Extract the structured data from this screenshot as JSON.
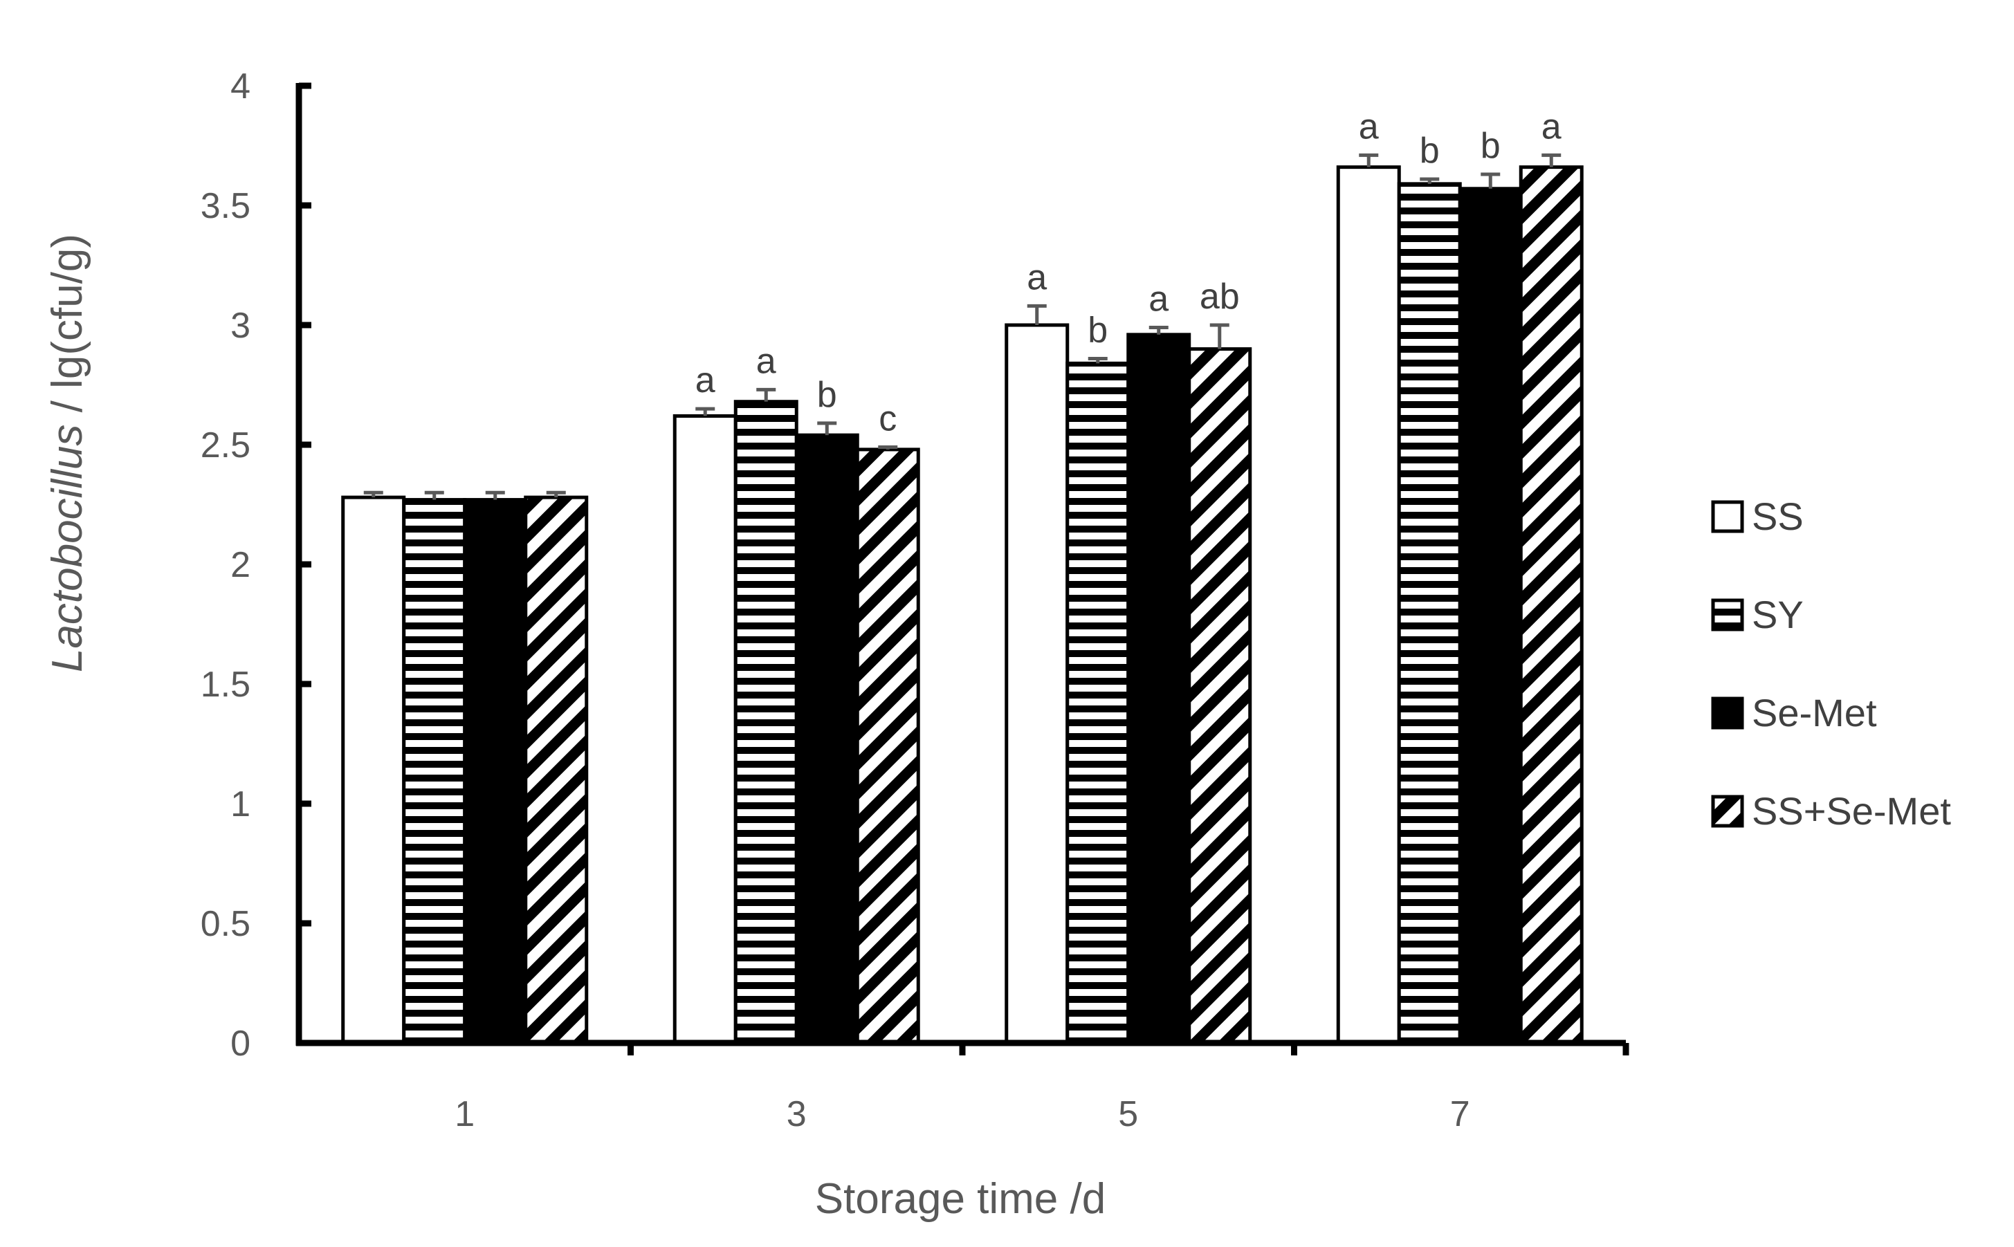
{
  "chart_data": {
    "type": "bar",
    "xlabel": "Storage time /d",
    "ylabel_italic": "Lactobocillus",
    "ylabel_rest": " / lg(cfu/g)",
    "ylim": [
      0,
      4
    ],
    "yticks": [
      "0",
      "0.5",
      "1",
      "1.5",
      "2",
      "2.5",
      "3",
      "3.5",
      "4"
    ],
    "categories": [
      "1",
      "3",
      "5",
      "7"
    ],
    "legend_position": "right",
    "series": [
      {
        "name": "SS",
        "pattern": "white",
        "values": [
          2.28,
          2.62,
          3.0,
          3.66
        ],
        "errors": [
          0.02,
          0.03,
          0.08,
          0.05
        ],
        "labels": [
          "",
          "a",
          "a",
          "a"
        ]
      },
      {
        "name": "SY",
        "pattern": "horizontal-stripes",
        "values": [
          2.27,
          2.68,
          2.84,
          3.59
        ],
        "errors": [
          0.03,
          0.05,
          0.02,
          0.02
        ],
        "labels": [
          "",
          "a",
          "b",
          "b"
        ]
      },
      {
        "name": "Se-Met",
        "pattern": "black",
        "values": [
          2.27,
          2.54,
          2.96,
          3.57
        ],
        "errors": [
          0.03,
          0.05,
          0.03,
          0.06
        ],
        "labels": [
          "",
          "b",
          "a",
          "b"
        ]
      },
      {
        "name": "SS+Se-Met",
        "pattern": "diagonal-stripes",
        "values": [
          2.28,
          2.48,
          2.9,
          3.66
        ],
        "errors": [
          0.02,
          0.01,
          0.1,
          0.05
        ],
        "labels": [
          "",
          "c",
          "ab",
          "a"
        ]
      }
    ]
  }
}
